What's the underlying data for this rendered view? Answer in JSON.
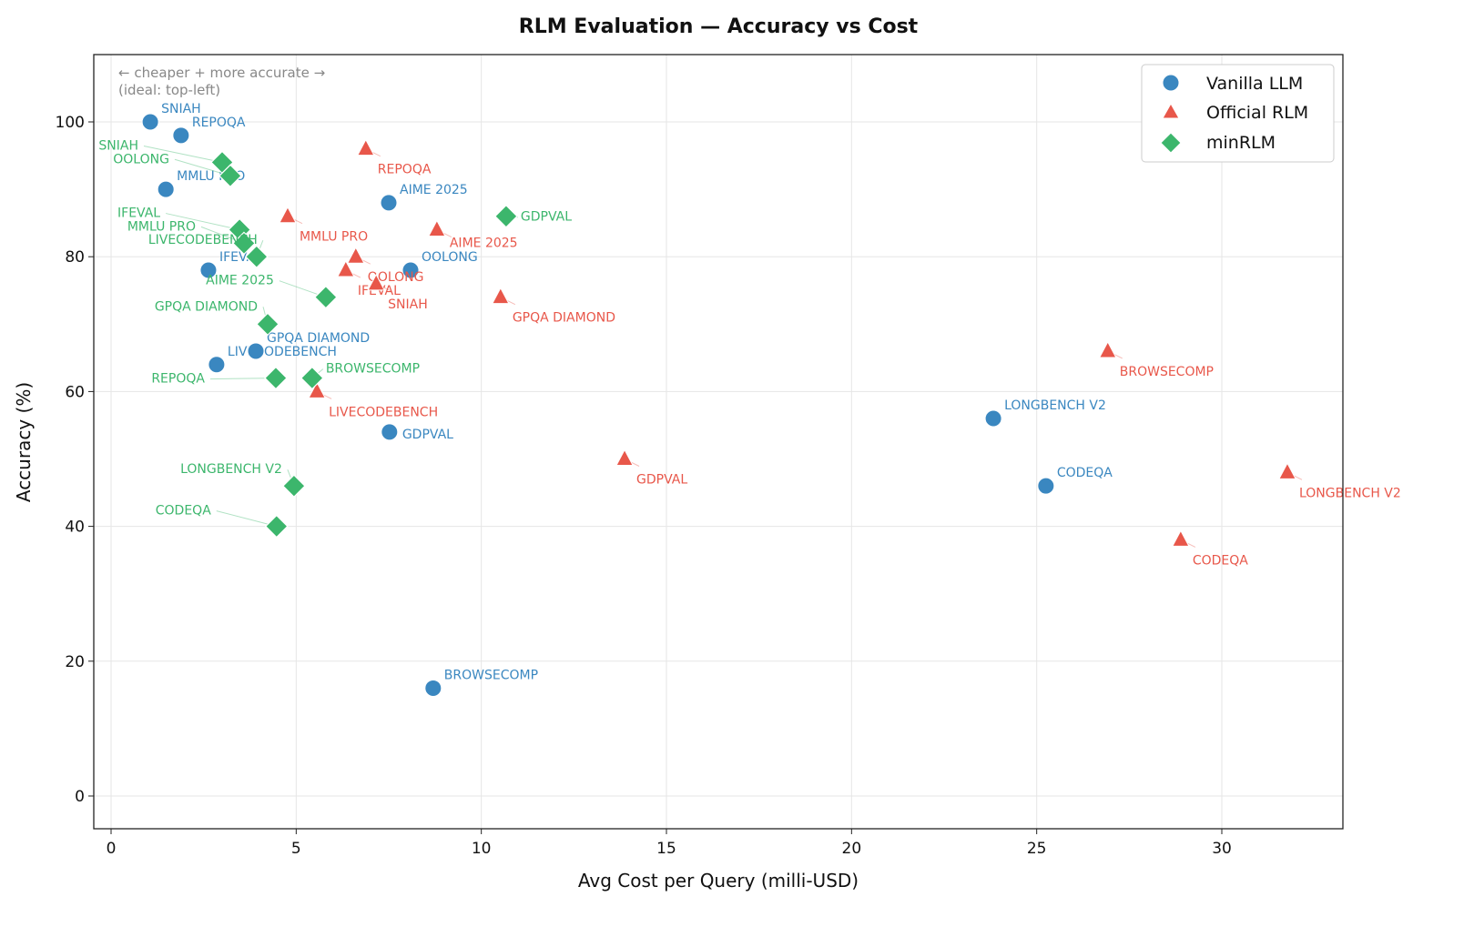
{
  "chart_data": {
    "type": "scatter",
    "title": "RLM Evaluation — Accuracy vs Cost",
    "xlabel": "Avg Cost per Query (milli-USD)",
    "ylabel": "Accuracy (%)",
    "xlim": [
      -0.5,
      33.3
    ],
    "ylim": [
      -5,
      110
    ],
    "xticks": [
      0,
      5,
      10,
      15,
      20,
      25,
      30
    ],
    "yticks": [
      0,
      20,
      40,
      60,
      80,
      100
    ],
    "grid": true,
    "legend_position": "top-right",
    "annotation": [
      "← cheaper + more accurate →",
      "(ideal: top-left)"
    ],
    "series": [
      {
        "name": "Vanilla LLM",
        "marker": "circle",
        "color": "#3a87c0",
        "points": [
          {
            "label": "SNIAH",
            "x": 1.06,
            "y": 100
          },
          {
            "label": "REPOQA",
            "x": 1.89,
            "y": 98
          },
          {
            "label": "MMLU PRO",
            "x": 1.48,
            "y": 90
          },
          {
            "label": "IFEVAL",
            "x": 2.63,
            "y": 78
          },
          {
            "label": "LIVECODEBENCH",
            "x": 2.85,
            "y": 64
          },
          {
            "label": "GPQA DIAMOND",
            "x": 3.91,
            "y": 66
          },
          {
            "label": "AIME 2025",
            "x": 7.5,
            "y": 88
          },
          {
            "label": "OOLONG",
            "x": 8.09,
            "y": 78
          },
          {
            "label": "GDPVAL",
            "x": 7.52,
            "y": 54
          },
          {
            "label": "BROWSECOMP",
            "x": 8.7,
            "y": 16
          },
          {
            "label": "LONGBENCH V2",
            "x": 23.83,
            "y": 56
          },
          {
            "label": "CODEQA",
            "x": 25.25,
            "y": 46
          }
        ]
      },
      {
        "name": "Official RLM",
        "marker": "triangle",
        "color": "#e8574a",
        "points": [
          {
            "label": "REPOQA",
            "x": 6.88,
            "y": 96
          },
          {
            "label": "MMLU PRO",
            "x": 4.77,
            "y": 86
          },
          {
            "label": "AIME 2025",
            "x": 8.8,
            "y": 84
          },
          {
            "label": "OOLONG",
            "x": 6.61,
            "y": 80
          },
          {
            "label": "IFEVAL",
            "x": 6.34,
            "y": 78
          },
          {
            "label": "SNIAH",
            "x": 7.16,
            "y": 76
          },
          {
            "label": "GPQA DIAMOND",
            "x": 10.52,
            "y": 74
          },
          {
            "label": "LIVECODEBENCH",
            "x": 5.56,
            "y": 60
          },
          {
            "label": "GDPVAL",
            "x": 13.87,
            "y": 50
          },
          {
            "label": "BROWSECOMP",
            "x": 26.92,
            "y": 66
          },
          {
            "label": "CODEQA",
            "x": 28.89,
            "y": 38
          },
          {
            "label": "LONGBENCH V2",
            "x": 31.77,
            "y": 48
          }
        ]
      },
      {
        "name": "minRLM",
        "marker": "diamond",
        "color": "#3cb66c",
        "points": [
          {
            "label": "SNIAH",
            "x": 3.0,
            "y": 94
          },
          {
            "label": "OOLONG",
            "x": 3.22,
            "y": 92
          },
          {
            "label": "GDPVAL",
            "x": 10.67,
            "y": 86
          },
          {
            "label": "IFEVAL",
            "x": 3.47,
            "y": 84
          },
          {
            "label": "MMLU PRO",
            "x": 3.59,
            "y": 82
          },
          {
            "label": "LIVECODEBENCH",
            "x": 3.93,
            "y": 80
          },
          {
            "label": "AIME 2025",
            "x": 5.8,
            "y": 74
          },
          {
            "label": "GPQA DIAMOND",
            "x": 4.23,
            "y": 70
          },
          {
            "label": "REPOQA",
            "x": 4.45,
            "y": 62
          },
          {
            "label": "BROWSECOMP",
            "x": 5.43,
            "y": 62
          },
          {
            "label": "LONGBENCH V2",
            "x": 4.94,
            "y": 46
          },
          {
            "label": "CODEQA",
            "x": 4.47,
            "y": 40
          }
        ]
      }
    ]
  }
}
